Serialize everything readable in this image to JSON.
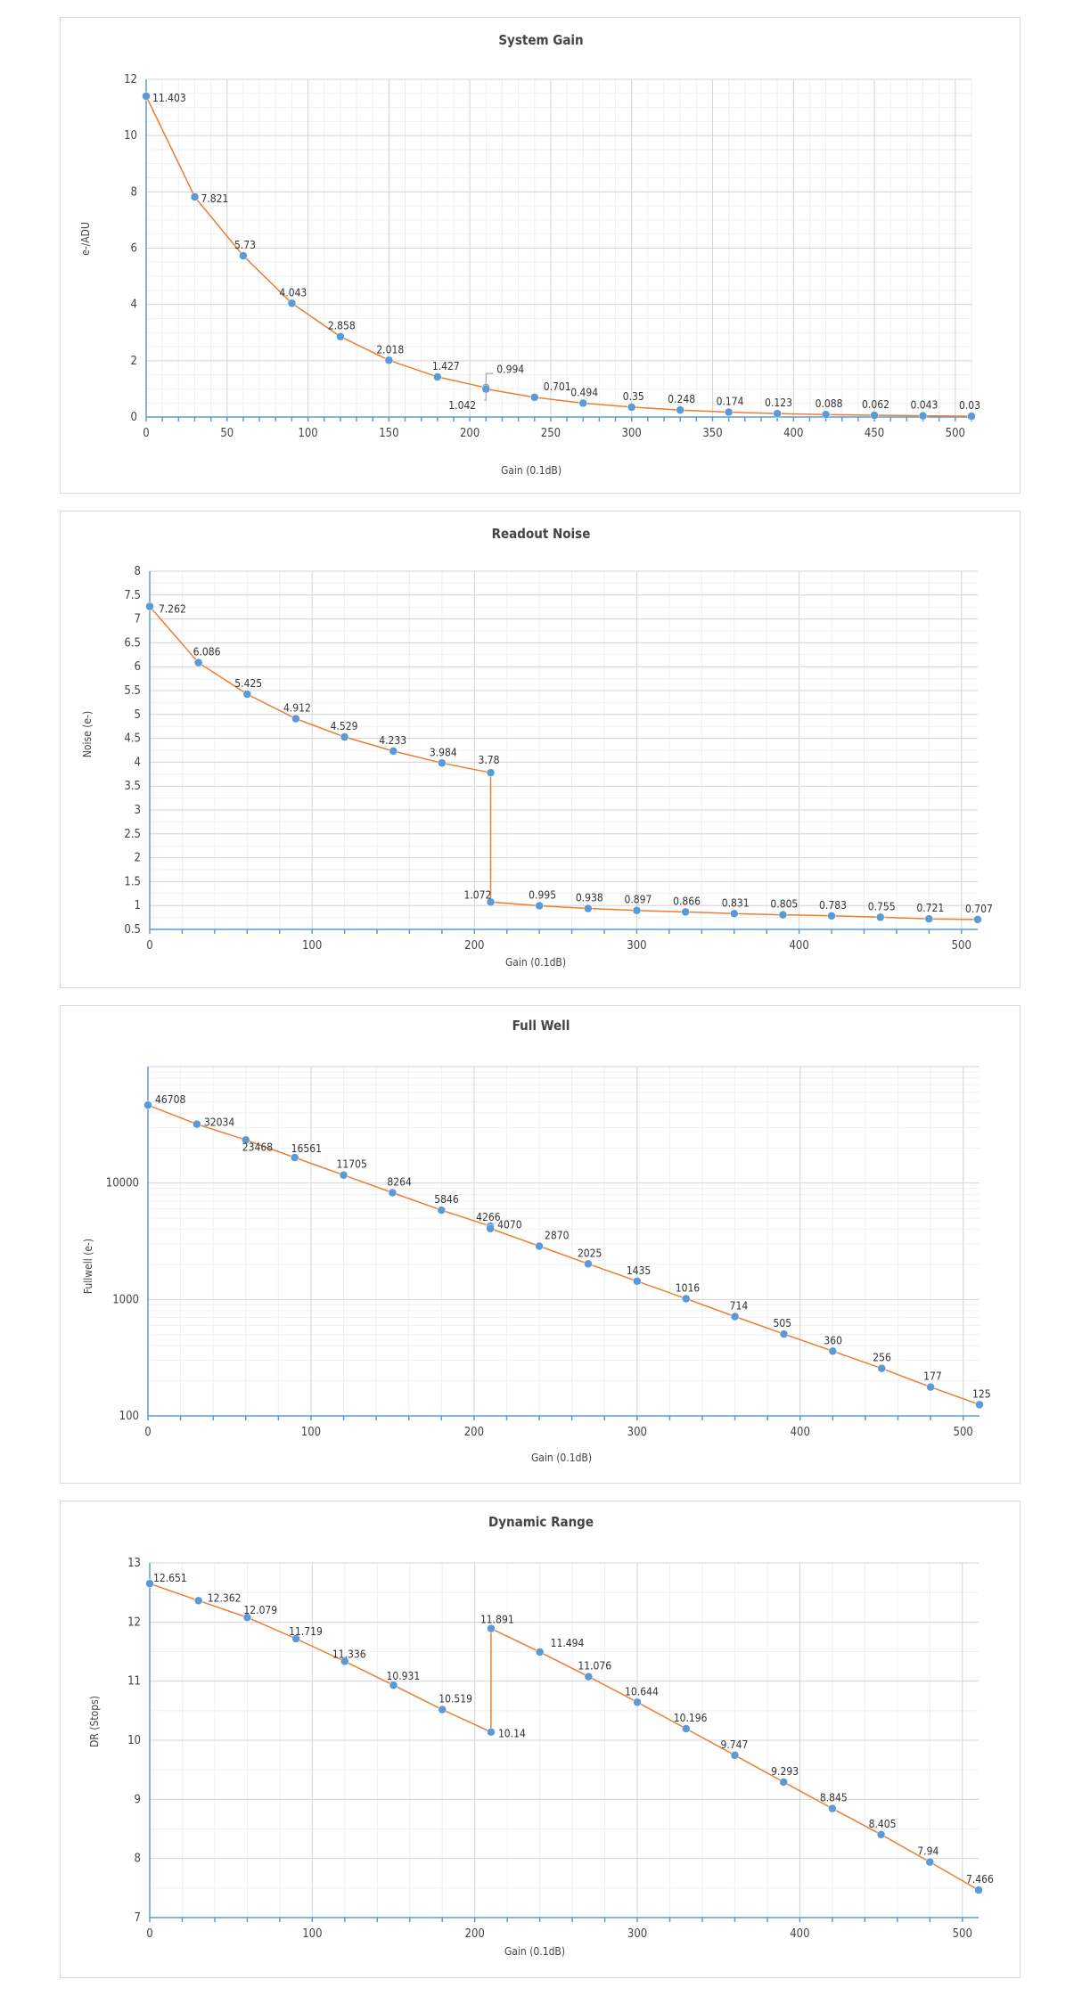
{
  "chart_data": [
    {
      "type": "line",
      "title": "System Gain",
      "xlabel": "Gain (0.1dB)",
      "ylabel": "e-/ADU",
      "xlim": [
        0,
        510
      ],
      "ylim": [
        0,
        12
      ],
      "xticks": [
        0,
        50,
        100,
        150,
        200,
        250,
        300,
        350,
        400,
        450,
        500
      ],
      "yticks": [
        0,
        2,
        4,
        6,
        8,
        10,
        12
      ],
      "yscale": "linear",
      "grid": true,
      "series": [
        {
          "x": [
            0,
            30,
            60,
            90,
            120,
            150,
            180,
            210,
            210,
            240,
            270,
            300,
            330,
            360,
            390,
            420,
            450,
            480,
            510
          ],
          "y": [
            11.403,
            7.821,
            5.73,
            4.043,
            2.858,
            2.018,
            1.427,
            1.042,
            0.994,
            0.701,
            0.494,
            0.35,
            0.248,
            0.174,
            0.123,
            0.088,
            0.062,
            0.043,
            0.03
          ],
          "labels": [
            "11.403",
            "7.821",
            "5.73",
            "4.043",
            "2.858",
            "2.018",
            "1.427",
            "1.042",
            "0.994",
            "0.701",
            "0.494",
            "0.35",
            "0.248",
            "0.174",
            "0.123",
            "0.088",
            "0.062",
            "0.043",
            "0.03"
          ]
        }
      ]
    },
    {
      "type": "line",
      "title": "Readout Noise",
      "xlabel": "Gain (0.1dB)",
      "ylabel": "Noise (e-)",
      "xlim": [
        0,
        510
      ],
      "ylim": [
        0.5,
        8
      ],
      "xticks": [
        0,
        100,
        200,
        300,
        400,
        500
      ],
      "yticks": [
        0.5,
        1,
        1.5,
        2,
        2.5,
        3,
        3.5,
        4,
        4.5,
        5,
        5.5,
        6,
        6.5,
        7,
        7.5,
        8
      ],
      "yticklabels": [
        "0.5",
        "1",
        "1.5",
        "2",
        "2.5",
        "3",
        "3.5",
        "4",
        "4.5",
        "5",
        "5.5",
        "6",
        "6.5",
        "7",
        "7.5",
        "8"
      ],
      "yscale": "linear",
      "grid": true,
      "series": [
        {
          "x": [
            0,
            30,
            60,
            90,
            120,
            150,
            180,
            210,
            210,
            240,
            270,
            300,
            330,
            360,
            390,
            420,
            450,
            480,
            510
          ],
          "y": [
            7.262,
            6.086,
            5.425,
            4.912,
            4.529,
            4.233,
            3.984,
            3.78,
            1.072,
            0.995,
            0.938,
            0.897,
            0.866,
            0.831,
            0.805,
            0.783,
            0.755,
            0.721,
            0.707
          ],
          "labels": [
            "7.262",
            "6.086",
            "5.425",
            "4.912",
            "4.529",
            "4.233",
            "3.984",
            "3.78",
            "1.072",
            "0.995",
            "0.938",
            "0.897",
            "0.866",
            "0.831",
            "0.805",
            "0.783",
            "0.755",
            "0.721",
            "0.707"
          ]
        }
      ]
    },
    {
      "type": "line",
      "title": "Full Well",
      "xlabel": "Gain (0.1dB)",
      "ylabel": "Fullwell (e-)",
      "xlim": [
        0,
        510
      ],
      "ylim": [
        100,
        100000
      ],
      "xticks": [
        0,
        100,
        200,
        300,
        400,
        500
      ],
      "yticks": [
        100,
        1000,
        10000
      ],
      "yscale": "log",
      "grid": true,
      "series": [
        {
          "x": [
            0,
            30,
            60,
            90,
            120,
            150,
            180,
            210,
            210,
            240,
            270,
            300,
            330,
            360,
            390,
            420,
            450,
            480,
            510
          ],
          "y": [
            46708,
            32034,
            23468,
            16561,
            11705,
            8264,
            5846,
            4266,
            4070,
            2870,
            2025,
            1435,
            1016,
            714,
            505,
            360,
            256,
            177,
            125
          ],
          "labels": [
            "46708",
            "32034",
            "23468",
            "16561",
            "11705",
            "8264",
            "5846",
            "4266",
            "4070",
            "2870",
            "2025",
            "1435",
            "1016",
            "714",
            "505",
            "360",
            "256",
            "177",
            "125"
          ]
        }
      ]
    },
    {
      "type": "line",
      "title": "Dynamic Range",
      "xlabel": "Gain (0.1dB)",
      "ylabel": "DR (Stops)",
      "xlim": [
        0,
        510
      ],
      "ylim": [
        7,
        13
      ],
      "xticks": [
        0,
        100,
        200,
        300,
        400,
        500
      ],
      "yticks": [
        7,
        8,
        9,
        10,
        11,
        12,
        13
      ],
      "yscale": "linear",
      "grid": true,
      "series": [
        {
          "x": [
            0,
            30,
            60,
            90,
            120,
            150,
            180,
            210,
            210,
            240,
            270,
            300,
            330,
            360,
            390,
            420,
            450,
            480,
            510
          ],
          "y": [
            12.651,
            12.362,
            12.079,
            11.719,
            11.336,
            10.931,
            10.519,
            10.14,
            11.891,
            11.494,
            11.076,
            10.644,
            10.196,
            9.747,
            9.293,
            8.845,
            8.405,
            7.94,
            7.466
          ],
          "labels": [
            "12.651",
            "12.362",
            "12.079",
            "11.719",
            "11.336",
            "10.931",
            "10.519",
            "10.14",
            "11.891",
            "11.494",
            "11.076",
            "10.644",
            "10.196",
            "9.747",
            "9.293",
            "8.845",
            "8.405",
            "7.94",
            "7.466"
          ]
        }
      ]
    }
  ],
  "colors": {
    "series_line": "#ed7d31",
    "series_marker": "#5b9bd5",
    "axis": "#5b9bd5"
  }
}
